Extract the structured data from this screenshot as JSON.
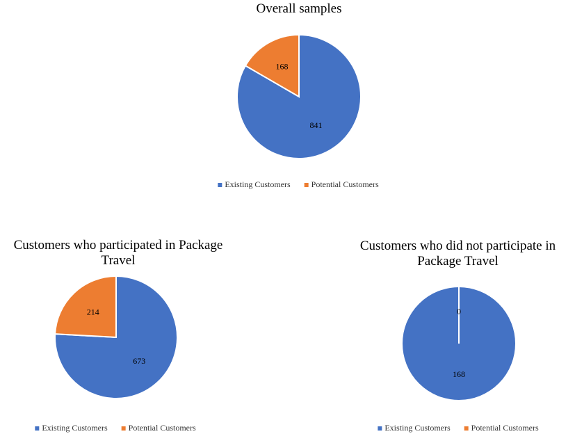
{
  "chart_data": [
    {
      "type": "pie",
      "title": "Overall samples",
      "categories": [
        "Existing Customers",
        "Potential Customers"
      ],
      "values": [
        841,
        168
      ],
      "colors": [
        "#4472c4",
        "#ed7d31"
      ]
    },
    {
      "type": "pie",
      "title": "Customers who participated in Package Travel",
      "categories": [
        "Existing Customers",
        "Potential Customers"
      ],
      "values": [
        673,
        214
      ],
      "colors": [
        "#4472c4",
        "#ed7d31"
      ]
    },
    {
      "type": "pie",
      "title": "Customers who did not participate in Package Travel",
      "categories": [
        "Existing Customers",
        "Potential Customers"
      ],
      "values": [
        168,
        0
      ],
      "colors": [
        "#4472c4",
        "#ed7d31"
      ]
    }
  ]
}
